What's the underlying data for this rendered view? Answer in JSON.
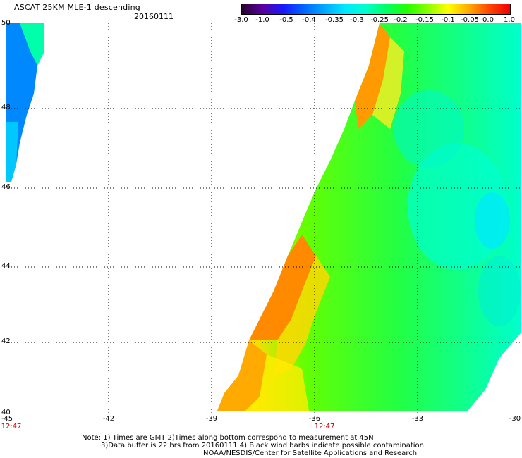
{
  "header": {
    "title": "ASCAT 25KM MLE-1 descending",
    "date": "20160111"
  },
  "colorbar": {
    "labels": [
      "-3.0",
      "-1.0",
      "-0.5",
      "-0.4",
      "-0.35",
      "-0.3",
      "-0.25",
      "-0.2",
      "-0.15",
      "-0.1",
      "-0.05",
      "0.0",
      "1.0"
    ],
    "colors": [
      "#2a0030",
      "#5a00a0",
      "#1818ff",
      "#0066ff",
      "#00a8ff",
      "#00e8ff",
      "#00ffcc",
      "#00ff66",
      "#22ff00",
      "#88ff00",
      "#ffff00",
      "#ffaa00",
      "#ff4400",
      "#ee0000"
    ]
  },
  "map": {
    "lat_labels": [
      "50",
      "48",
      "46",
      "44",
      "42",
      "40"
    ],
    "lat_values": [
      50,
      48,
      46,
      44,
      42,
      40
    ],
    "lon_labels": [
      "-45",
      "-42",
      "-39",
      "-36",
      "-33",
      "-30"
    ],
    "lon_values": [
      -45,
      -42,
      -39,
      -36,
      -33,
      -30
    ],
    "time_labels": [
      "12:47",
      "12:47"
    ],
    "time_lons": [
      -45,
      -36
    ],
    "lon_range": [
      -45,
      -30
    ],
    "lat_range": [
      40,
      50
    ],
    "gridlines": "dotted"
  },
  "notes": [
    "Note: 1) Times are GMT 2)Times along bottom correspond to measurement at 45N",
    "3)Data buffer is 22 hrs from 20160111 4) Black wind barbs indicate possible contamination",
    "NOAA/NESDIS/Center for Satellite Applications and Research"
  ]
}
